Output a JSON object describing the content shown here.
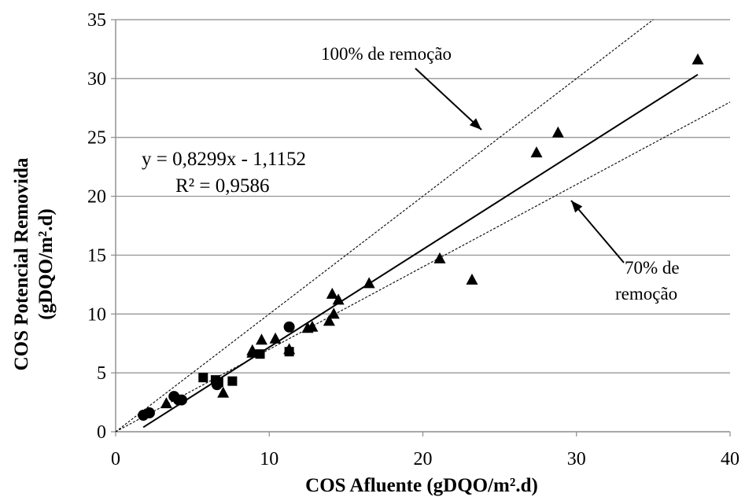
{
  "chart_data": {
    "type": "scatter",
    "xlabel": "COS Afluente (gDQO/m².d)",
    "ylabel_line1": "COS Potencial Removida",
    "ylabel_line2": "(gDQO/m².d)",
    "xlim": [
      0,
      40
    ],
    "ylim": [
      0,
      35
    ],
    "x_ticks": [
      "0",
      "10",
      "20",
      "30",
      "40"
    ],
    "y_ticks": [
      "0",
      "5",
      "10",
      "15",
      "20",
      "25",
      "30",
      "35"
    ],
    "grid": "horizontal",
    "series": [
      {
        "marker": "triangle",
        "points": [
          [
            3.3,
            2.4
          ],
          [
            7.0,
            3.3
          ],
          [
            8.9,
            6.9
          ],
          [
            8.9,
            6.7
          ],
          [
            9.5,
            7.8
          ],
          [
            10.4,
            7.9
          ],
          [
            11.3,
            7.0
          ],
          [
            12.5,
            8.8
          ],
          [
            12.8,
            8.9
          ],
          [
            13.9,
            9.4
          ],
          [
            14.1,
            11.7
          ],
          [
            14.2,
            10.0
          ],
          [
            14.5,
            11.2
          ],
          [
            16.5,
            12.6
          ],
          [
            21.1,
            14.7
          ],
          [
            23.2,
            12.9
          ],
          [
            27.4,
            23.7
          ],
          [
            28.8,
            25.4
          ],
          [
            37.9,
            31.6
          ]
        ]
      },
      {
        "marker": "circle",
        "points": [
          [
            1.8,
            1.4
          ],
          [
            2.2,
            1.6
          ],
          [
            3.8,
            3.0
          ],
          [
            4.1,
            2.7
          ],
          [
            4.3,
            2.7
          ],
          [
            6.6,
            4.0
          ],
          [
            11.3,
            8.9
          ]
        ]
      },
      {
        "marker": "square",
        "points": [
          [
            5.7,
            4.6
          ],
          [
            6.5,
            4.4
          ],
          [
            6.7,
            4.2
          ],
          [
            7.6,
            4.3
          ],
          [
            9.4,
            6.6
          ],
          [
            11.3,
            6.8
          ]
        ]
      }
    ],
    "trendline": {
      "slope": 0.8299,
      "intercept": -1.1152,
      "x_range": [
        1.8,
        37.9
      ]
    },
    "reference_lines": [
      {
        "slope": 1.0,
        "style": "dashed"
      },
      {
        "slope": 0.7,
        "style": "dashed"
      }
    ],
    "annotations": {
      "equation": "y = 0,8299x - 1,1152",
      "r_squared": "R² = 0,9586",
      "line_100": "100% de remoção",
      "line_70_line1": "70% de",
      "line_70_line2": "remoção"
    },
    "colors": {
      "marks": "#000000",
      "grid": "#8c8c8c",
      "axis": "#8c8c8c"
    }
  }
}
